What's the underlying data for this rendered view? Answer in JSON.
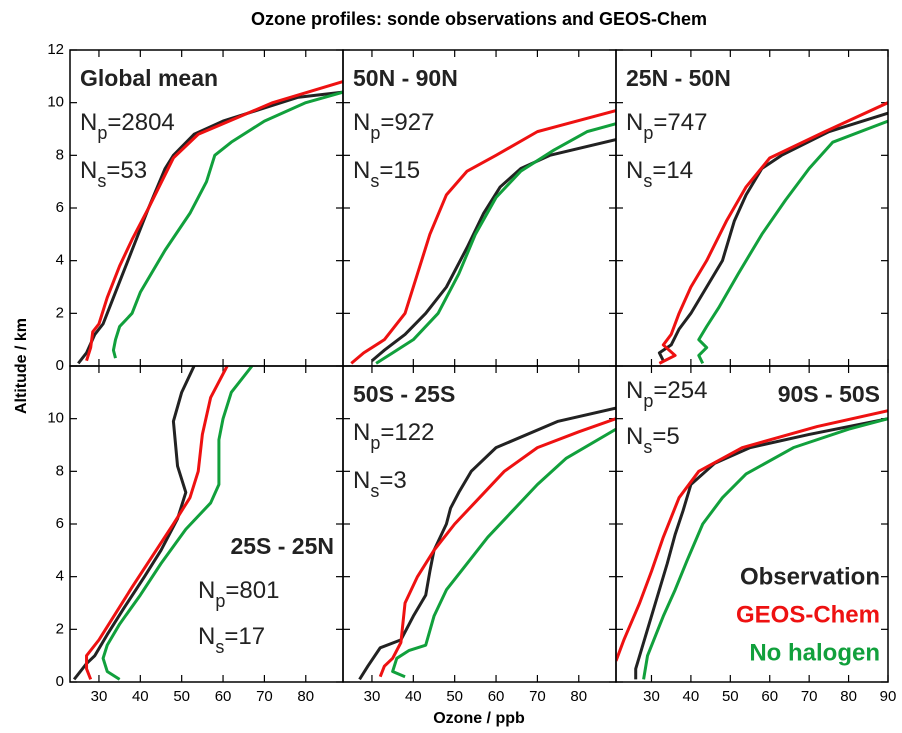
{
  "chart_data": {
    "type": "line",
    "title": "Ozone profiles: sonde observations and GEOS-Chem",
    "xlabel": "Ozone / ppb",
    "ylabel": "Altitude / km",
    "series": [
      {
        "name": "Observation",
        "color": "#222222"
      },
      {
        "name": "GEOS-Chem",
        "color": "#ee1111"
      },
      {
        "name": "No halogen",
        "color": "#11a03c"
      }
    ],
    "panels": [
      {
        "region": "Global mean",
        "np": {
          "sym": "N",
          "sub": "p",
          "text": "=2804"
        },
        "ns": {
          "sym": "N",
          "sub": "s",
          "text": "=53"
        },
        "xlim": [
          23,
          89
        ],
        "xticks": [
          30,
          40,
          50,
          60,
          70,
          80
        ],
        "ylim": [
          0,
          12
        ],
        "yticks": [
          0,
          2,
          4,
          6,
          8,
          10,
          12
        ],
        "lines": [
          {
            "x": [
              25,
              27,
              29,
              31,
              33,
              35,
              38,
              42,
              46,
              48,
              53,
              60,
              70,
              78,
              89
            ],
            "y": [
              0.1,
              0.5,
              1.2,
              1.6,
              2.4,
              3.2,
              4.4,
              6,
              7.5,
              8,
              8.8,
              9.3,
              9.8,
              10.2,
              10.4
            ]
          },
          {
            "x": [
              27,
              28,
              28.5,
              30,
              32,
              35,
              38,
              42,
              48,
              54,
              72,
              89
            ],
            "y": [
              0.2,
              0.7,
              1.3,
              1.6,
              2.6,
              3.8,
              4.8,
              6,
              7.9,
              8.8,
              10,
              10.8
            ]
          },
          {
            "x": [
              34,
              33.5,
              34,
              35,
              38,
              40,
              46,
              52,
              56,
              58,
              62,
              70,
              80,
              89
            ],
            "y": [
              0.3,
              0.6,
              1,
              1.5,
              2,
              2.8,
              4.4,
              5.8,
              7,
              8,
              8.5,
              9.3,
              10,
              10.4
            ]
          }
        ]
      },
      {
        "region": "50N - 90N",
        "np": {
          "sym": "N",
          "sub": "p",
          "text": "=927"
        },
        "ns": {
          "sym": "N",
          "sub": "s",
          "text": "=15"
        },
        "xlim": [
          23,
          89
        ],
        "xticks": [
          30,
          40,
          50,
          60,
          70,
          80
        ],
        "ylim": [
          0,
          12
        ],
        "yticks": [
          0,
          2,
          4,
          6,
          8,
          10,
          12
        ],
        "lines": [
          {
            "x": [
              30,
              33,
              38,
              43,
              48,
              53,
              57,
              61,
              66,
              73,
              89
            ],
            "y": [
              0.2,
              0.6,
              1.2,
              2,
              3,
              4.5,
              5.8,
              6.8,
              7.5,
              8,
              8.6
            ]
          },
          {
            "x": [
              25,
              28,
              33,
              38,
              41,
              44,
              48,
              53,
              60,
              70,
              89
            ],
            "y": [
              0.1,
              0.5,
              1,
              2,
              3.5,
              5,
              6.5,
              7.4,
              8,
              8.9,
              9.7
            ]
          },
          {
            "x": [
              31,
              35,
              40,
              46,
              51,
              55,
              60,
              66,
              74,
              82,
              89
            ],
            "y": [
              0.1,
              0.5,
              1,
              2,
              3.5,
              5,
              6.4,
              7.4,
              8.2,
              8.9,
              9.2
            ]
          }
        ]
      },
      {
        "region": "25N - 50N",
        "np": {
          "sym": "N",
          "sub": "p",
          "text": "=747"
        },
        "ns": {
          "sym": "N",
          "sub": "s",
          "text": "=14"
        },
        "xlim": [
          21,
          90
        ],
        "xticks": [
          30,
          40,
          50,
          60,
          70,
          80,
          90
        ],
        "ylim": [
          0,
          12
        ],
        "yticks": [
          0,
          2,
          4,
          6,
          8,
          10,
          12
        ],
        "lines": [
          {
            "x": [
              33,
              32,
              35,
              37,
              40,
              44,
              48,
              51,
              54,
              58,
              63,
              75,
              90
            ],
            "y": [
              0.2,
              0.5,
              0.8,
              1.4,
              2,
              3,
              4,
              5.5,
              6.5,
              7.5,
              8,
              8.9,
              9.6
            ]
          },
          {
            "x": [
              32,
              36,
              33,
              35,
              37,
              40,
              44,
              49,
              54,
              60,
              74,
              90
            ],
            "y": [
              0.1,
              0.4,
              0.8,
              1.2,
              2,
              3,
              4,
              5.5,
              6.8,
              7.9,
              8.9,
              10
            ]
          },
          {
            "x": [
              43,
              42,
              44,
              42,
              44,
              47,
              52,
              58,
              64,
              70,
              76,
              90
            ],
            "y": [
              0.1,
              0.4,
              0.7,
              1,
              1.5,
              2.2,
              3.5,
              5,
              6.3,
              7.5,
              8.5,
              9.3
            ]
          }
        ]
      },
      {
        "region": "25S - 25N",
        "np": {
          "sym": "N",
          "sub": "p",
          "text": "=801"
        },
        "ns": {
          "sym": "N",
          "sub": "s",
          "text": "=17"
        },
        "xlim": [
          23,
          89
        ],
        "xticks": [
          30,
          40,
          50,
          60,
          70,
          80
        ],
        "ylim": [
          0,
          12
        ],
        "yticks": [
          0,
          2,
          4,
          6,
          8,
          10
        ],
        "lines": [
          {
            "x": [
              24,
              27,
              29,
              32,
              36,
              41,
              45,
              49,
              51,
              49,
              48,
              50,
              53
            ],
            "y": [
              0.1,
              0.7,
              1,
              1.8,
              2.8,
              4,
              5,
              6.2,
              7.2,
              8.2,
              9.9,
              11,
              12
            ]
          },
          {
            "x": [
              28,
              27,
              27,
              30,
              34,
              38,
              43,
              48,
              52,
              54,
              55,
              57,
              61
            ],
            "y": [
              0.1,
              0.5,
              1,
              1.6,
              2.6,
              3.6,
              4.8,
              6,
              7,
              8,
              9.4,
              10.8,
              12
            ]
          },
          {
            "x": [
              35,
              32,
              31,
              32,
              35,
              40,
              45,
              51,
              57,
              59,
              59,
              60,
              62,
              67
            ],
            "y": [
              0.1,
              0.4,
              0.9,
              1.4,
              2.2,
              3.3,
              4.5,
              5.8,
              6.8,
              7.5,
              9.2,
              10,
              11,
              12
            ]
          }
        ]
      },
      {
        "region": "50S - 25S",
        "np": {
          "sym": "N",
          "sub": "p",
          "text": "=122"
        },
        "ns": {
          "sym": "N",
          "sub": "s",
          "text": "=3"
        },
        "xlim": [
          23,
          89
        ],
        "xticks": [
          30,
          40,
          50,
          60,
          70,
          80
        ],
        "ylim": [
          0,
          12
        ],
        "yticks": [
          0,
          2,
          4,
          6,
          8,
          10
        ],
        "lines": [
          {
            "x": [
              27,
              29,
              32,
              37,
              40,
              43,
              44,
              45,
              48,
              49,
              51,
              54,
              60,
              75,
              89
            ],
            "y": [
              0.1,
              0.6,
              1.3,
              1.6,
              2.5,
              3.3,
              4.2,
              5,
              6,
              6.6,
              7.2,
              8,
              8.9,
              9.9,
              10.4
            ]
          },
          {
            "x": [
              32,
              33,
              35,
              37,
              38,
              41,
              45,
              50,
              56,
              62,
              70,
              80,
              89
            ],
            "y": [
              0.2,
              0.6,
              0.9,
              1.5,
              3,
              4,
              5,
              6,
              7,
              8,
              8.9,
              9.5,
              10
            ]
          },
          {
            "x": [
              38,
              35,
              36,
              39,
              43,
              45,
              48,
              52,
              58,
              64,
              70,
              77,
              89
            ],
            "y": [
              0.2,
              0.4,
              0.9,
              1.2,
              1.4,
              2.5,
              3.5,
              4.3,
              5.5,
              6.5,
              7.5,
              8.5,
              9.6
            ]
          }
        ]
      },
      {
        "region": "90S - 50S",
        "np": {
          "sym": "N",
          "sub": "p",
          "text": "=254"
        },
        "ns": {
          "sym": "N",
          "sub": "s",
          "text": "=5"
        },
        "xlim": [
          21,
          90
        ],
        "xticks": [
          30,
          40,
          50,
          60,
          70,
          80,
          90
        ],
        "ylim": [
          0,
          12
        ],
        "yticks": [
          0,
          2,
          4,
          6,
          8,
          10
        ],
        "lines": [
          {
            "x": [
              26,
              26,
              28,
              31,
              34,
              36,
              38,
              40,
              46,
              55,
              70,
              90
            ],
            "y": [
              0.1,
              0.5,
              1.5,
              3,
              4.5,
              5.6,
              6.5,
              7.5,
              8.3,
              8.9,
              9.4,
              10
            ]
          },
          {
            "x": [
              21,
              23,
              27,
              30,
              33,
              37,
              42,
              53,
              72,
              90
            ],
            "y": [
              0.8,
              1.6,
              3,
              4.2,
              5.5,
              7,
              8,
              8.9,
              9.7,
              10.3
            ]
          },
          {
            "x": [
              28,
              29,
              33,
              36,
              39,
              43,
              48,
              54,
              66,
              80,
              90
            ],
            "y": [
              0.1,
              1,
              2.5,
              3.5,
              4.6,
              6,
              7,
              7.9,
              8.9,
              9.6,
              10
            ]
          }
        ]
      }
    ]
  }
}
